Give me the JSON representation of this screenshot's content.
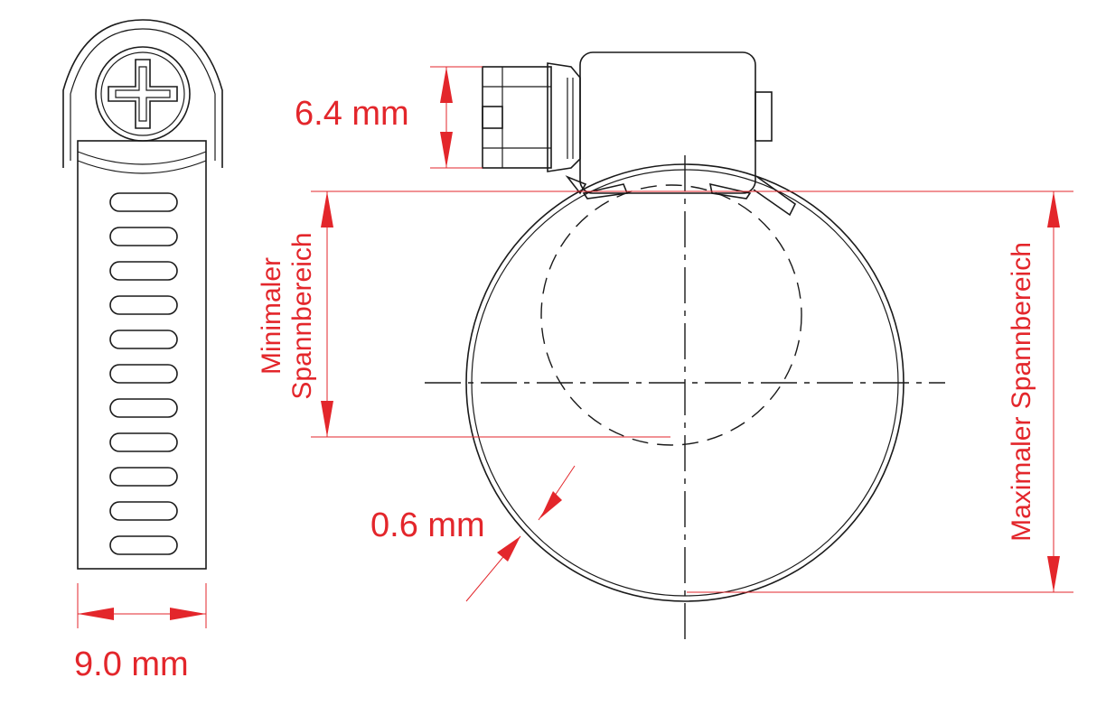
{
  "dimensions": {
    "band_width": "9.0 mm",
    "housing_height": "6.4 mm",
    "band_thickness": "0.6 mm",
    "min_range_line1": "Minimaler",
    "min_range_line2": "Spannbereich",
    "max_range": "Maximaler Spannbereich"
  },
  "colors": {
    "dimension": "#e3262b",
    "line": "#1a1a1a"
  }
}
